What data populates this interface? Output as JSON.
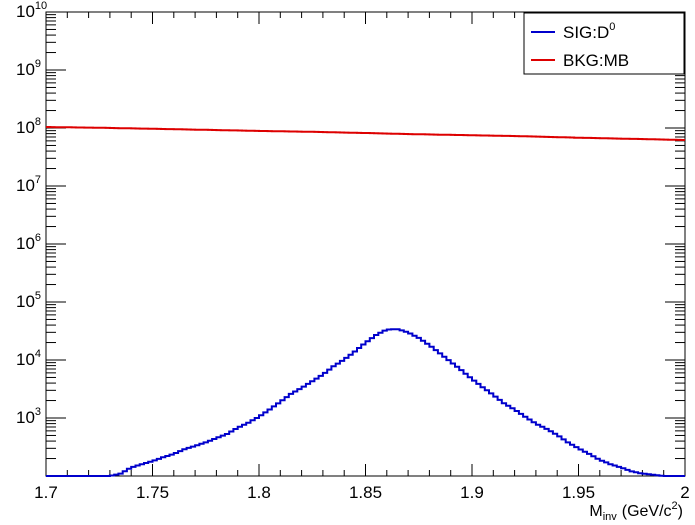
{
  "chart_data": {
    "type": "line",
    "xlabel": "M_inv (GeV/c^2)",
    "xlabel_main": "M",
    "xlabel_sub": "inv",
    "xlabel_unit_pre": "(GeV/c",
    "xlabel_unit_exp": "2",
    "xlabel_unit_post": ")",
    "xlim": [
      1.7,
      2.0
    ],
    "ylim": [
      100,
      10000000000
    ],
    "yscale": "log",
    "x_ticks": [
      "1.7",
      "1.75",
      "1.8",
      "1.85",
      "1.9",
      "1.95",
      "2"
    ],
    "y_ticks": [
      {
        "base": "10",
        "exp": "3",
        "value": 1000
      },
      {
        "base": "10",
        "exp": "4",
        "value": 10000
      },
      {
        "base": "10",
        "exp": "5",
        "value": 100000
      },
      {
        "base": "10",
        "exp": "6",
        "value": 1000000
      },
      {
        "base": "10",
        "exp": "7",
        "value": 10000000
      },
      {
        "base": "10",
        "exp": "8",
        "value": 100000000
      },
      {
        "base": "10",
        "exp": "9",
        "value": 1000000000
      },
      {
        "base": "10",
        "exp": "10",
        "value": 10000000000
      }
    ],
    "grid": false,
    "legend_position": "top-right",
    "series": [
      {
        "name": "SIG:D^0",
        "legend_main": "SIG:D",
        "legend_sup": "0",
        "color": "#0000cc",
        "x": [
          1.7,
          1.72,
          1.73,
          1.735,
          1.74,
          1.745,
          1.75,
          1.755,
          1.76,
          1.765,
          1.77,
          1.775,
          1.78,
          1.785,
          1.79,
          1.795,
          1.8,
          1.805,
          1.81,
          1.815,
          1.82,
          1.825,
          1.83,
          1.835,
          1.84,
          1.845,
          1.85,
          1.855,
          1.86,
          1.865,
          1.87,
          1.875,
          1.88,
          1.885,
          1.89,
          1.895,
          1.9,
          1.905,
          1.91,
          1.915,
          1.92,
          1.925,
          1.93,
          1.935,
          1.94,
          1.945,
          1.95,
          1.955,
          1.96,
          1.965,
          1.97,
          1.975,
          1.98,
          1.985,
          1.99,
          1.995,
          2.0
        ],
        "values": [
          100,
          100,
          100,
          110,
          140,
          160,
          180,
          210,
          240,
          290,
          330,
          380,
          450,
          530,
          680,
          830,
          1050,
          1400,
          1900,
          2600,
          3300,
          4300,
          5600,
          7800,
          10200,
          14000,
          19800,
          27000,
          33500,
          34000,
          30000,
          24000,
          18000,
          13000,
          9300,
          6700,
          4700,
          3400,
          2500,
          1800,
          1400,
          1050,
          800,
          650,
          510,
          380,
          300,
          240,
          190,
          160,
          140,
          120,
          110,
          105,
          100,
          100,
          100
        ]
      },
      {
        "name": "BKG:MB",
        "legend_main": "BKG:MB",
        "color": "#dd0000",
        "x": [
          1.7,
          1.725,
          1.75,
          1.775,
          1.8,
          1.825,
          1.85,
          1.875,
          1.9,
          1.925,
          1.95,
          1.975,
          2.0
        ],
        "values": [
          104000000,
          101000000,
          97000000,
          93000000,
          89000000,
          86000000,
          82000000,
          78000000,
          75000000,
          72000000,
          68000000,
          65000000,
          62000000
        ]
      }
    ]
  }
}
